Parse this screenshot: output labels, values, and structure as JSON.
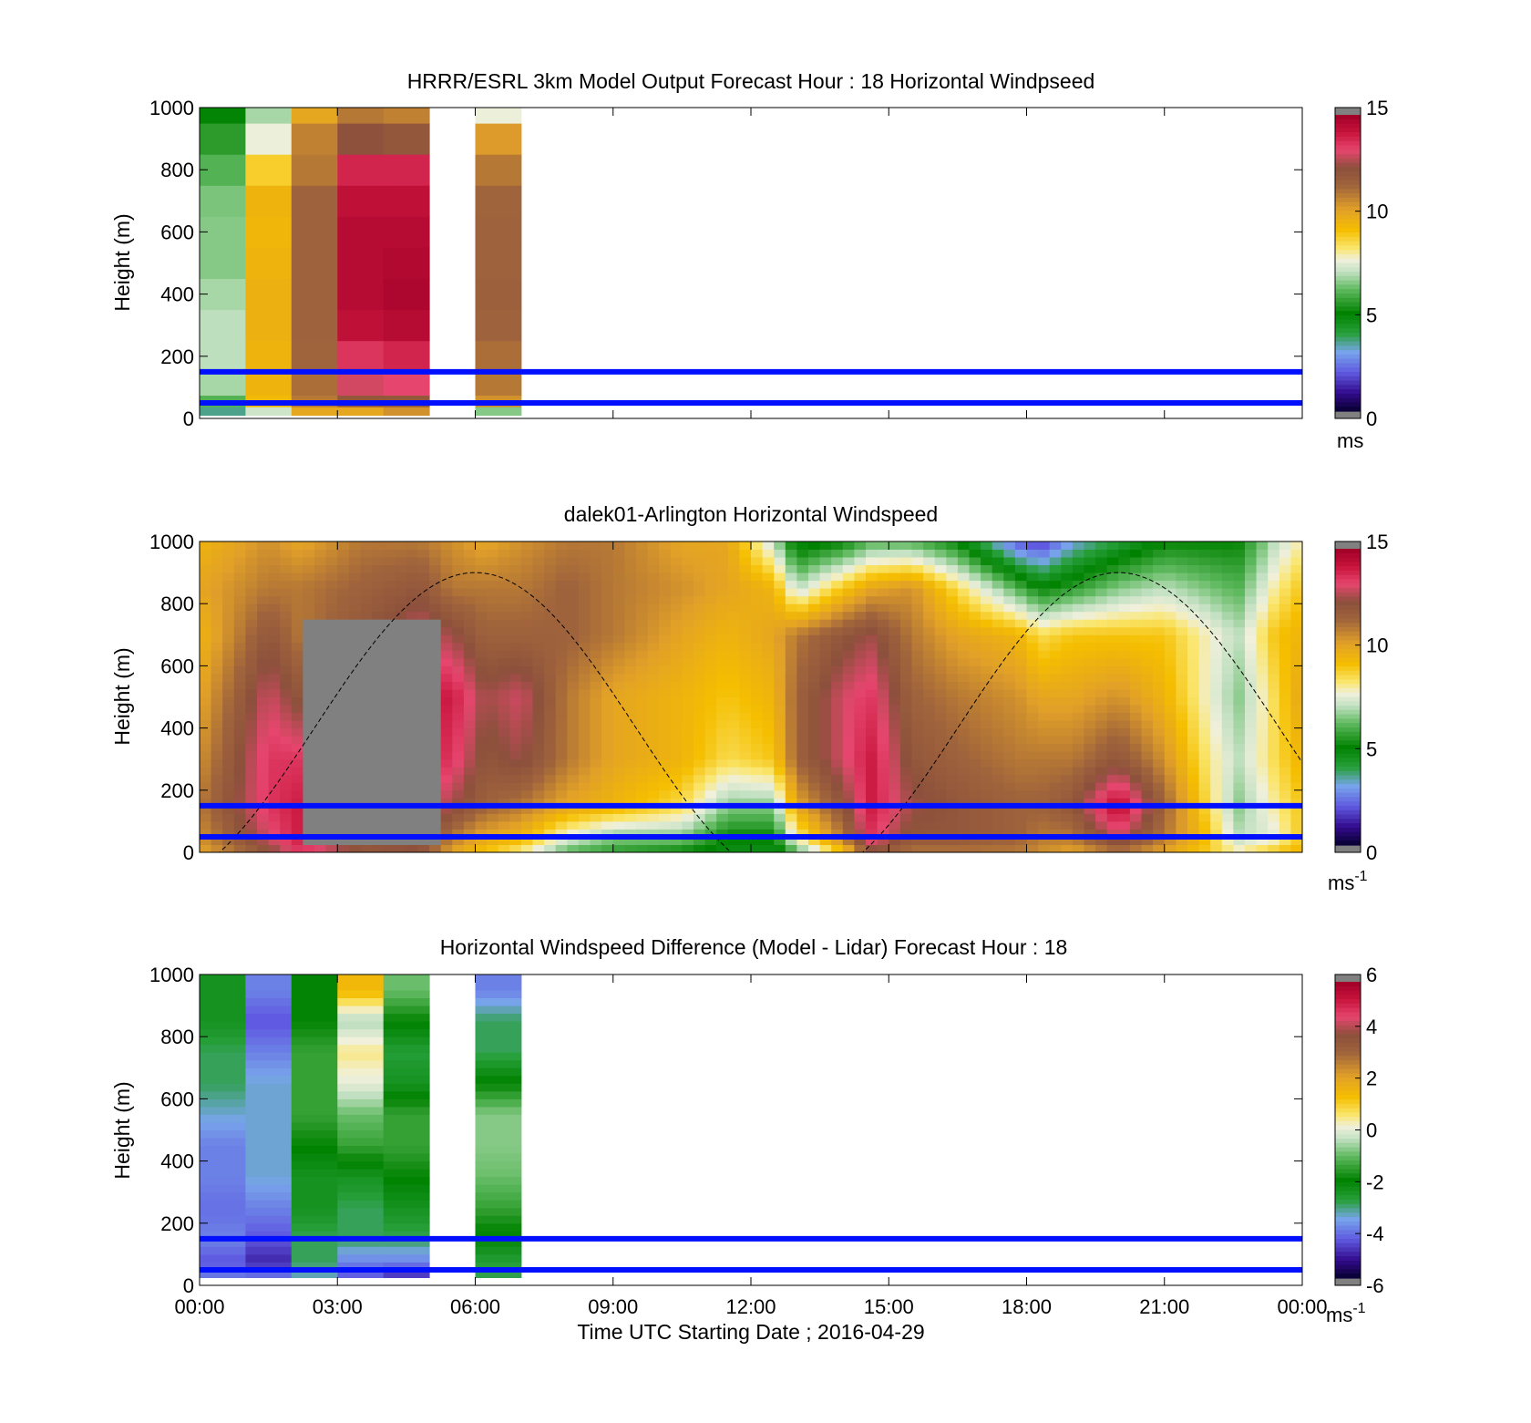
{
  "figure": {
    "xlabel": "Time UTC  Starting Date ; 2016-04-29",
    "x_ticks": [
      "00:00",
      "03:00",
      "06:00",
      "09:00",
      "12:00",
      "15:00",
      "18:00",
      "21:00",
      "00:00"
    ],
    "y_ticks": [
      "0",
      "200",
      "400",
      "600",
      "800",
      "1000"
    ],
    "ylabel": "Height (m)",
    "reference_lines_m": [
      50,
      150
    ],
    "reference_line_color": "#0010ff"
  },
  "chart_data": [
    {
      "type": "heatmap",
      "title": "HRRR/ESRL 3km Model Output   Forecast Hour : 18 Horizontal Windpseed",
      "ylabel": "Height (m)",
      "xlim_hours": [
        0,
        24
      ],
      "ylim": [
        0,
        1000
      ],
      "colorbar": {
        "range": [
          0,
          15
        ],
        "ticks": [
          "0",
          "5",
          "10",
          "15"
        ],
        "unit": "ms"
      },
      "cells": [
        {
          "t": 0,
          "z": [
            [
              25,
              3.5
            ],
            [
              50,
              6
            ],
            [
              100,
              6.8
            ],
            [
              200,
              7
            ],
            [
              300,
              7
            ],
            [
              400,
              6.8
            ],
            [
              500,
              6.5
            ],
            [
              600,
              6.5
            ],
            [
              700,
              6.4
            ],
            [
              800,
              6
            ],
            [
              900,
              5.5
            ],
            [
              1000,
              5
            ]
          ]
        },
        {
          "t": 1,
          "z": [
            [
              25,
              7.2
            ],
            [
              50,
              9.3
            ],
            [
              100,
              9.5
            ],
            [
              200,
              9.5
            ],
            [
              300,
              9.6
            ],
            [
              400,
              9.6
            ],
            [
              500,
              9.5
            ],
            [
              600,
              9.4
            ],
            [
              700,
              9.5
            ],
            [
              800,
              8.8
            ],
            [
              900,
              7.6
            ],
            [
              1000,
              6.8
            ]
          ]
        },
        {
          "t": 2,
          "z": [
            [
              25,
              10
            ],
            [
              50,
              11
            ],
            [
              100,
              11.2
            ],
            [
              200,
              11.4
            ],
            [
              300,
              11.5
            ],
            [
              400,
              11.5
            ],
            [
              500,
              11.5
            ],
            [
              600,
              11.5
            ],
            [
              700,
              11.5
            ],
            [
              800,
              11
            ],
            [
              900,
              10.8
            ],
            [
              1000,
              10
            ]
          ]
        },
        {
          "t": 3,
          "z": [
            [
              25,
              10
            ],
            [
              50,
              12
            ],
            [
              100,
              13
            ],
            [
              200,
              13.5
            ],
            [
              300,
              14.3
            ],
            [
              400,
              14.5
            ],
            [
              500,
              14.5
            ],
            [
              600,
              14.5
            ],
            [
              700,
              14.3
            ],
            [
              800,
              13.8
            ],
            [
              900,
              12.2
            ],
            [
              1000,
              11
            ]
          ]
        },
        {
          "t": 4,
          "z": [
            [
              25,
              10.5
            ],
            [
              50,
              12
            ],
            [
              100,
              13.2
            ],
            [
              200,
              13.8
            ],
            [
              300,
              14.5
            ],
            [
              400,
              14.7
            ],
            [
              500,
              14.6
            ],
            [
              600,
              14.5
            ],
            [
              700,
              14.3
            ],
            [
              800,
              13.8
            ],
            [
              900,
              12
            ],
            [
              1000,
              10.8
            ]
          ]
        },
        {
          "t": 6,
          "z": [
            [
              25,
              6.5
            ],
            [
              50,
              10.5
            ],
            [
              100,
              11
            ],
            [
              200,
              11.2
            ],
            [
              300,
              11.5
            ],
            [
              400,
              11.6
            ],
            [
              500,
              11.5
            ],
            [
              600,
              11.5
            ],
            [
              700,
              11.4
            ],
            [
              800,
              11
            ],
            [
              900,
              10.3
            ],
            [
              1000,
              7.6
            ]
          ]
        }
      ]
    },
    {
      "type": "heatmap",
      "title": "dalek01-Arlington  Horizontal Windspeed",
      "ylabel": "Height (m)",
      "xlim_hours": [
        0,
        24
      ],
      "ylim": [
        0,
        1000
      ],
      "colorbar": {
        "range": [
          0,
          15
        ],
        "ticks": [
          "0",
          "5",
          "10",
          "15"
        ],
        "unit": "ms",
        "unit_sup": "-1"
      },
      "no_data_color": "#808080",
      "no_data_region": {
        "t_start": 2.35,
        "t_end": 5.2,
        "z_max": 750
      },
      "keyframes_hours": [
        0,
        1.5,
        2.2,
        3.5,
        4.8,
        5.5,
        6.2,
        7,
        8,
        9,
        10.5,
        11.5,
        12.5,
        13,
        14,
        14.6,
        15.5,
        16.5,
        17.8,
        18.3,
        19,
        20,
        21,
        21.8,
        22.6,
        23.4,
        24
      ],
      "profile_heights_m": [
        0,
        50,
        150,
        300,
        500,
        700,
        850,
        1000
      ],
      "keyframe_profiles": [
        [
          10,
          10.5,
          11,
          10.5,
          10,
          9.5,
          10,
          9.5
        ],
        [
          12,
          13,
          13.5,
          13.5,
          13,
          12,
          11,
          10.5
        ],
        [
          13.5,
          14,
          14,
          13.5,
          12,
          11,
          11,
          10
        ],
        [
          12,
          12,
          12.5,
          13,
          12.5,
          12,
          11.5,
          11
        ],
        [
          12,
          13,
          13.5,
          14,
          14,
          13,
          12,
          11
        ],
        [
          10,
          11,
          12.5,
          13.5,
          14,
          12.5,
          11,
          10.5
        ],
        [
          9,
          10,
          11.5,
          12,
          12.5,
          11.5,
          11,
          10
        ],
        [
          8,
          9.5,
          11,
          12.5,
          13,
          11.5,
          11,
          10.5
        ],
        [
          6,
          7.5,
          10,
          11,
          11,
          11.5,
          11.5,
          11
        ],
        [
          5.5,
          6.5,
          9.5,
          10,
          10,
          11,
          11,
          11
        ],
        [
          5,
          6.5,
          8.5,
          9.5,
          9.5,
          10,
          10.5,
          10
        ],
        [
          4.5,
          5,
          6.5,
          8.5,
          9,
          9.5,
          10,
          10
        ],
        [
          4.5,
          5,
          6.5,
          9,
          9.5,
          10,
          9.5,
          7
        ],
        [
          6,
          8,
          10,
          11.5,
          11.5,
          11,
          7,
          4.5
        ],
        [
          9,
          11,
          12,
          13,
          13,
          12,
          9,
          5
        ],
        [
          12,
          13.5,
          14,
          14,
          13.5,
          12.5,
          10,
          6
        ],
        [
          11,
          12,
          12.5,
          12,
          11.5,
          11,
          10.5,
          6
        ],
        [
          11,
          12,
          12,
          11.5,
          11,
          10,
          8.5,
          5
        ],
        [
          11,
          11.5,
          11.5,
          11,
          10.5,
          9.5,
          6,
          2
        ],
        [
          10.5,
          11,
          11.5,
          11,
          10,
          8.5,
          5,
          1.5
        ],
        [
          10,
          11,
          12,
          11,
          10,
          9,
          5.5,
          3
        ],
        [
          11,
          13,
          14.5,
          12,
          10.5,
          9,
          6.5,
          4
        ],
        [
          10,
          11,
          11.5,
          10.5,
          9.5,
          9,
          7,
          5
        ],
        [
          9,
          9.5,
          9,
          8.5,
          8,
          8,
          6.5,
          5
        ],
        [
          8,
          7,
          6.5,
          7,
          6.5,
          7,
          6,
          5
        ],
        [
          9,
          7.5,
          8,
          8.5,
          8.5,
          9,
          8,
          7
        ],
        [
          9.5,
          9,
          9,
          9.5,
          10,
          9.5,
          9,
          8
        ]
      ],
      "dashed_curve": {
        "type": "cosine",
        "mean_m": 400,
        "amplitude_m": 500,
        "peak_hour": 20,
        "period_hours": 14
      }
    },
    {
      "type": "heatmap",
      "title": "Horizontal Windspeed Difference (Model - Lidar) Forecast Hour : 18",
      "ylabel": "Height (m)",
      "xlabel": "Time UTC  Starting Date ; 2016-04-29",
      "xlim_hours": [
        0,
        24
      ],
      "ylim": [
        0,
        1000
      ],
      "colorbar": {
        "range": [
          -6,
          6
        ],
        "ticks": [
          "-6",
          "-4",
          "-2",
          "0",
          "2",
          "4",
          "6"
        ],
        "unit": "ms",
        "unit_sup": "-1"
      },
      "profile_heights_m": [
        25,
        75,
        150,
        250,
        350,
        450,
        550,
        650,
        750,
        850,
        950
      ],
      "columns": [
        {
          "t": 0,
          "values": [
            -4,
            -4.5,
            -4,
            -4.2,
            -4,
            -4,
            -3.5,
            -3,
            -3,
            -2.5,
            -2.5
          ]
        },
        {
          "t": 1,
          "values": [
            -4,
            -5,
            -4.5,
            -4,
            -3.5,
            -3.5,
            -3.5,
            -3.5,
            -4,
            -4.5,
            -4
          ]
        },
        {
          "t": 2,
          "values": [
            -3.5,
            -3,
            -3,
            -2.5,
            -2.5,
            -2,
            -1.5,
            -1.5,
            -1.5,
            -2,
            -2
          ]
        },
        {
          "t": 3,
          "values": [
            -4.5,
            -4,
            -3,
            -3,
            -2.5,
            -1.5,
            -1,
            0,
            0.5,
            -0.5,
            1.5
          ]
        },
        {
          "t": 4,
          "values": [
            -5,
            -4,
            -3,
            -2.5,
            -2,
            -1.5,
            -1.5,
            -2.5,
            -2.8,
            -2,
            -1
          ]
        },
        {
          "t": 6,
          "values": [
            -3,
            -2.8,
            -2.2,
            -1.5,
            -1,
            -0.8,
            -0.8,
            -2,
            -3,
            -3,
            -4
          ]
        }
      ]
    }
  ]
}
